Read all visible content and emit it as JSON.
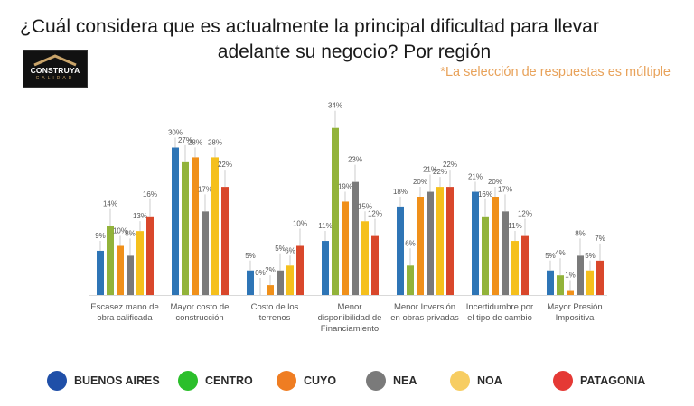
{
  "header": {
    "title_line1": "¿Cuál considera que es actualmente la principal dificultad para llevar",
    "title_line2": "adelante su negocio? Por región",
    "note": "*La selección de respuestas es múltiple"
  },
  "logo": {
    "brand": "CONSTRUYA",
    "sub": "CALIDAD",
    "icon": "roof-icon"
  },
  "chart_data": {
    "type": "bar",
    "title": "¿Cuál considera que es actualmente la principal dificultad para llevar adelante su negocio? Por región",
    "xlabel": "",
    "ylabel": "",
    "ylim": [
      0,
      35
    ],
    "grid": false,
    "legend_position": "bottom",
    "value_suffix": "%",
    "categories": [
      [
        "Escasez mano de",
        "obra calificada"
      ],
      [
        "Mayor costo de",
        "construcción"
      ],
      [
        "Costo de los",
        "terrenos"
      ],
      [
        "Menor",
        "disponibilidad de",
        "Financiamiento"
      ],
      [
        "Menor Inversión",
        "en obras privadas"
      ],
      [
        "Incertidumbre por",
        "el tipo de cambio"
      ],
      [
        "Mayor Presión",
        "Impositiva"
      ]
    ],
    "series": [
      {
        "name": "BUENOS AIRES",
        "color": "#2e75b6",
        "legend_color": "#1f4fa8",
        "values": [
          9,
          30,
          5,
          11,
          18,
          21,
          5
        ]
      },
      {
        "name": "CENTRO",
        "color": "#92b33a",
        "legend_color": "#2bbf2b",
        "values": [
          14,
          27,
          0,
          34,
          6,
          16,
          4
        ]
      },
      {
        "name": "CUYO",
        "color": "#f0901a",
        "legend_color": "#ef7d22",
        "values": [
          10,
          28,
          2,
          19,
          20,
          20,
          1
        ]
      },
      {
        "name": "NEA",
        "color": "#7a7a7a",
        "legend_color": "#7a7a7a",
        "values": [
          8,
          17,
          5,
          23,
          21,
          17,
          8
        ]
      },
      {
        "name": "NOA",
        "color": "#f5c01d",
        "legend_color": "#f7cd62",
        "values": [
          13,
          28,
          6,
          15,
          22,
          11,
          5
        ]
      },
      {
        "name": "PATAGONIA",
        "color": "#d9472b",
        "legend_color": "#e53935",
        "values": [
          16,
          22,
          10,
          12,
          22,
          12,
          7
        ]
      }
    ]
  }
}
